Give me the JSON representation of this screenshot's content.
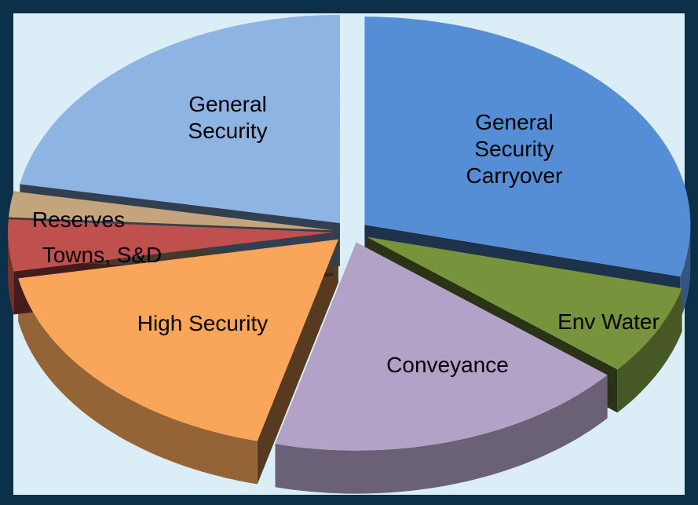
{
  "chart_data": {
    "type": "pie",
    "categories": [
      "General Security Carryover",
      "Env Water",
      "Conveyance",
      "High Security",
      "Towns, S&D",
      "Reserves",
      "General Security"
    ],
    "values": [
      29,
      7,
      18,
      18,
      4,
      2,
      22
    ],
    "colors": [
      "#558ed5",
      "#77933c",
      "#b3a2c7",
      "#f9a65a",
      "#c0504d",
      "#c4a47c",
      "#8eb4e3"
    ]
  }
}
